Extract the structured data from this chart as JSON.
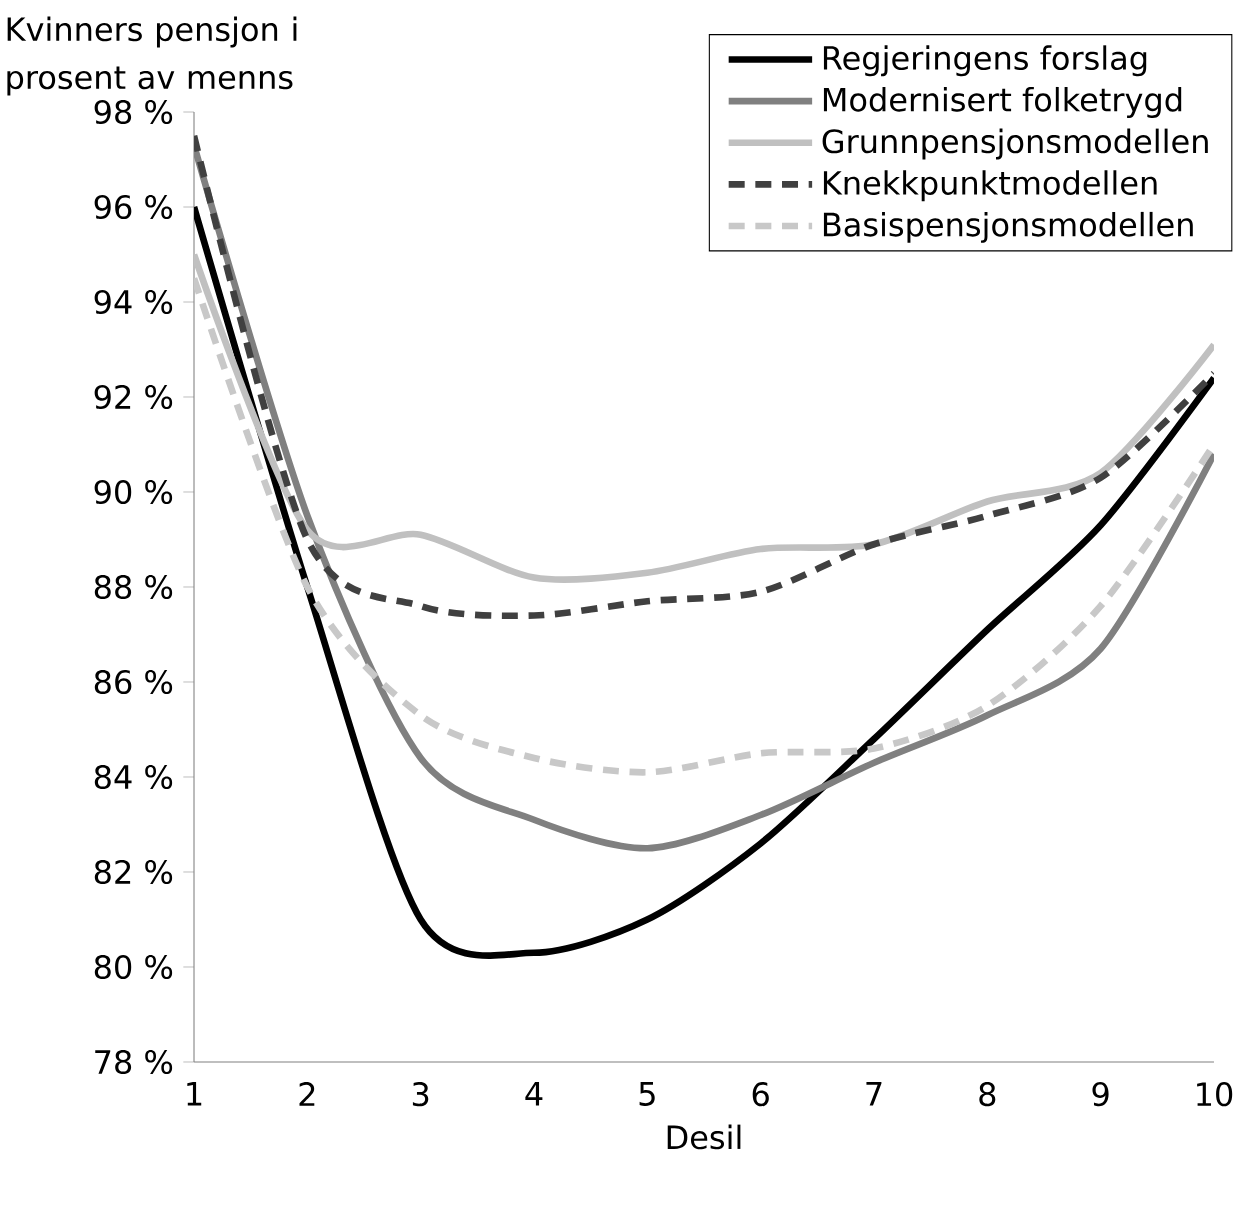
{
  "chart_data": {
    "type": "line",
    "ylabel": "Kvinners pensjon i prosent av menns",
    "xlabel": "Desil",
    "x": [
      1,
      2,
      3,
      4,
      5,
      6,
      7,
      8,
      9,
      10
    ],
    "xlim": [
      1,
      10
    ],
    "xticks": [
      1,
      2,
      3,
      4,
      5,
      6,
      7,
      8,
      9,
      10
    ],
    "ylim": [
      78,
      98
    ],
    "yticks": [
      {
        "value": 78,
        "label": "78 %"
      },
      {
        "value": 80,
        "label": "80 %"
      },
      {
        "value": 82,
        "label": "82 %"
      },
      {
        "value": 84,
        "label": "84 %"
      },
      {
        "value": 86,
        "label": "86 %"
      },
      {
        "value": 88,
        "label": "88 %"
      },
      {
        "value": 90,
        "label": "90 %"
      },
      {
        "value": 92,
        "label": "92 %"
      },
      {
        "value": 94,
        "label": "94 %"
      },
      {
        "value": 96,
        "label": "96 %"
      },
      {
        "value": 98,
        "label": "98 %"
      }
    ],
    "legend": "top right",
    "grid": false,
    "marker": "none",
    "series": [
      {
        "name": "Regjeringens forslag",
        "color": "#000000",
        "line_style": "solid",
        "values": [
          96.0,
          88.0,
          81.0,
          80.3,
          81.0,
          82.6,
          84.8,
          87.1,
          89.3,
          92.4
        ]
      },
      {
        "name": "Modernisert folketrygd",
        "color": "#808080",
        "line_style": "solid",
        "values": [
          97.3,
          89.5,
          84.4,
          83.1,
          82.5,
          83.2,
          84.3,
          85.3,
          86.7,
          90.8
        ]
      },
      {
        "name": "Grunnpensjonsmodellen",
        "color": "#c0c0c0",
        "line_style": "solid",
        "values": [
          95.0,
          89.2,
          89.1,
          88.2,
          88.3,
          88.8,
          88.9,
          89.8,
          90.4,
          93.1
        ]
      },
      {
        "name": "Knekkpunktmodellen",
        "color": "#404040",
        "line_style": "dashed",
        "values": [
          97.5,
          89.0,
          87.6,
          87.4,
          87.7,
          87.9,
          88.9,
          89.5,
          90.3,
          92.5
        ]
      },
      {
        "name": "Basispensjonsmodellen",
        "color": "#c8c8c8",
        "line_style": "dashed",
        "values": [
          94.5,
          88.0,
          85.3,
          84.4,
          84.1,
          84.5,
          84.6,
          85.5,
          87.6,
          91.0
        ]
      }
    ]
  }
}
